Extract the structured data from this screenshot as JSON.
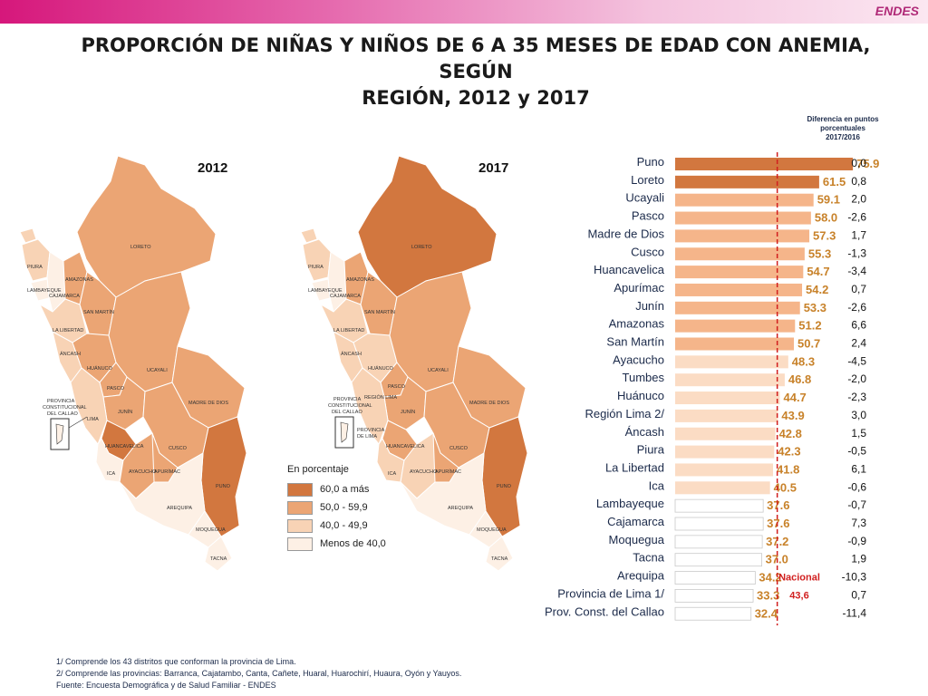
{
  "brand": "ENDES",
  "title_line1": "PROPORCIÓN DE NIÑAS Y NIÑOS DE 6 A 35 MESES DE EDAD CON ANEMIA, SEGÚN",
  "title_line2": "REGIÓN, 2012 y 2017",
  "maps": {
    "year1": "2012",
    "year2": "2017",
    "labels": {
      "loreto": "LORETO",
      "piura": "PIURA",
      "lambayeque": "LAMBAYEQUE",
      "cajamarca": "CAJAMARCA",
      "amazonas": "AMAZONAS",
      "san_martin": "SAN MARTÍN",
      "la_libertad": "LA LIBERTAD",
      "ancash": "ÁNCASH",
      "huanuco": "HUÁNUCO",
      "ucayali": "UCAYALI",
      "pasco": "PASCO",
      "junin": "JUNÍN",
      "lima": "LIMA",
      "madre_de_dios": "MADRE DE DIOS",
      "huancavelica": "HUANCAVELICA",
      "cusco": "CUSCO",
      "ica": "ICA",
      "ayacucho": "AYACUCHO",
      "apurimac": "APURÍMAC",
      "puno": "PUNO",
      "arequipa": "AREQUIPA",
      "moquegua": "MOQUEGUA",
      "tacna": "TACNA",
      "tumbes": "TUMBES",
      "callao_prov": "PROVINCIA CONSTITUCIONAL DEL CALLAO",
      "lima_prov": "PROVINCIA DE LIMA",
      "region_lima": "REGIÓN LIMA"
    },
    "callao_2012_line1": "PROVINCIA",
    "callao_2012_line2": "CONSTITUCIONAL",
    "callao_2012_line3": "DEL CALLAO",
    "lima_2017_line1": "PROVINCIA",
    "lima_2017_line2": "DE LIMA"
  },
  "legend": {
    "title": "En porcentaje",
    "items": [
      {
        "label": "60,0 a más",
        "color": "#d2773f"
      },
      {
        "label": "50,0 - 59,9",
        "color": "#eba574"
      },
      {
        "label": "40,0 - 49,9",
        "color": "#f8d3b5"
      },
      {
        "label": "Menos de 40,0",
        "color": "#fdf0e5"
      }
    ]
  },
  "chart_data": {
    "type": "bar",
    "orientation": "horizontal",
    "diff_header": [
      "Diferencia en puntos",
      "porcentuales",
      "2017/2016"
    ],
    "categories": [
      "Puno",
      "Loreto",
      "Ucayali",
      "Pasco",
      "Madre de Dios",
      "Cusco",
      "Huancavelica",
      "Apurímac",
      "Junín",
      "Amazonas",
      "San Martín",
      "Ayacucho",
      "Tumbes",
      "Huánuco",
      "Región Lima  2/",
      "Áncash",
      "Piura",
      "La Libertad",
      "Ica",
      "Lambayeque",
      "Cajamarca",
      "Moquegua",
      "Tacna",
      "Arequipa",
      "Provincia de Lima  1/",
      "Prov. Const. del Callao"
    ],
    "values": [
      75.9,
      61.5,
      59.1,
      58.0,
      57.3,
      55.3,
      54.7,
      54.2,
      53.3,
      51.2,
      50.7,
      48.3,
      46.8,
      44.7,
      43.9,
      42.8,
      42.3,
      41.8,
      40.5,
      37.6,
      37.6,
      37.2,
      37.0,
      34.2,
      33.3,
      32.4
    ],
    "value_labels": [
      "75.9",
      "61.5",
      "59.1",
      "58.0",
      "57.3",
      "55.3",
      "54.7",
      "54.2",
      "53.3",
      "51.2",
      "50.7",
      "48.3",
      "46.8",
      "44.7",
      "43.9",
      "42.8",
      "42.3",
      "41.8",
      "40.5",
      "37.6",
      "37.6",
      "37.2",
      "37.0",
      "34.2",
      "33.3",
      "32.4"
    ],
    "diff": [
      "0,0",
      "0,8",
      "2,0",
      "-2,6",
      "1,7",
      "-1,3",
      "-3,4",
      "0,7",
      "-2,6",
      "6,6",
      "2,4",
      "-4,5",
      "-2,0",
      "-2,3",
      "3,0",
      "1,5",
      "-0,5",
      "6,1",
      "-0,6",
      "-0,7",
      "7,3",
      "-0,9",
      "1,9",
      "-10,3",
      "0,7",
      "-11,4"
    ],
    "reference_label": "Nacional",
    "reference_value_label": "43,6",
    "reference_value": 43.6,
    "xlim": [
      0,
      80
    ],
    "colors": {
      "high": "#d2773f",
      "mid": "#f5b58a",
      "low": "#fbdcc4",
      "lowest": "#ffffff",
      "reference": "#d11f1f"
    }
  },
  "notes": {
    "n1": "1/ Comprende los 43 distritos que conforman la provincia de Lima.",
    "n2": "2/ Comprende las provincias: Barranca, Cajatambo, Canta, Cañete, Huaral, Huarochirí, Huaura, Oyón y Yauyos.",
    "source": "Fuente: Encuesta Demográfica y de Salud Familiar - ENDES"
  }
}
